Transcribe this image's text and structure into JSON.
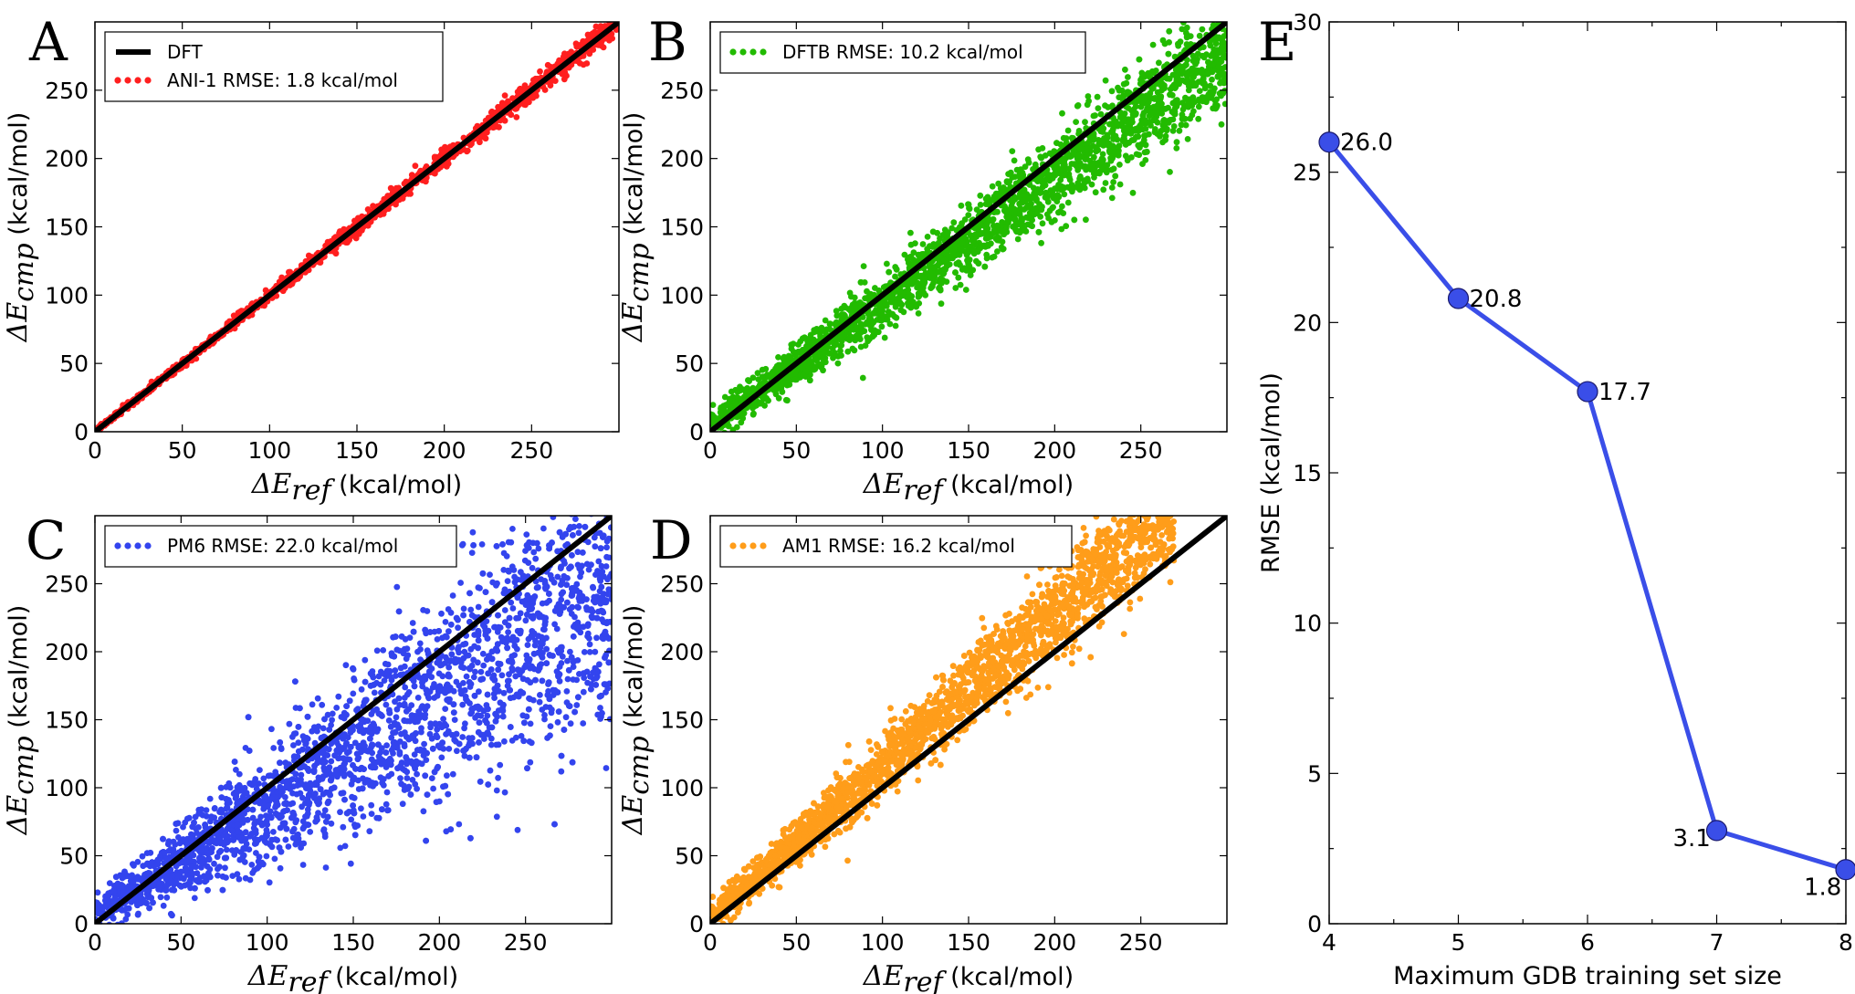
{
  "chart_data": [
    {
      "panel": "A",
      "type": "scatter",
      "xlabel_base": "ΔE",
      "xlabel_sub": "ref",
      "xlabel_unit": "(kcal/mol)",
      "ylabel_base": "ΔE",
      "ylabel_sub": "cmp",
      "ylabel_unit": "(kcal/mol)",
      "xlim": [
        0,
        300
      ],
      "ylim": [
        0,
        300
      ],
      "xticks": [
        "0",
        "50",
        "100",
        "150",
        "200",
        "250"
      ],
      "yticks": [
        "0",
        "50",
        "100",
        "150",
        "200",
        "250"
      ],
      "legend_position": "top-left",
      "series": [
        {
          "name": "DFT",
          "kind": "line",
          "color": "#000000",
          "x": [
            0,
            300
          ],
          "y": [
            0,
            300
          ]
        },
        {
          "name": "ANI-1 RMSE: 1.8 kcal/mol",
          "kind": "scatter",
          "color": "#ff1f1f",
          "rmse": 1.8,
          "spread_trend": "tight around y = x"
        }
      ]
    },
    {
      "panel": "B",
      "type": "scatter",
      "xlabel_base": "ΔE",
      "xlabel_sub": "ref",
      "xlabel_unit": "(kcal/mol)",
      "ylabel_base": "ΔE",
      "ylabel_sub": "cmp",
      "ylabel_unit": "(kcal/mol)",
      "xlim": [
        0,
        300
      ],
      "ylim": [
        0,
        300
      ],
      "xticks": [
        "0",
        "50",
        "100",
        "150",
        "200",
        "250"
      ],
      "yticks": [
        "0",
        "50",
        "100",
        "150",
        "200",
        "250"
      ],
      "legend_position": "top-left",
      "series": [
        {
          "name": "",
          "kind": "line",
          "color": "#000000",
          "x": [
            0,
            300
          ],
          "y": [
            0,
            300
          ]
        },
        {
          "name": "DFTB RMSE: 10.2 kcal/mol",
          "kind": "scatter",
          "color": "#22bb00",
          "rmse": 10.2,
          "spread_trend": "slightly below y = x at high energies"
        }
      ]
    },
    {
      "panel": "C",
      "type": "scatter",
      "xlabel_base": "ΔE",
      "xlabel_sub": "ref",
      "xlabel_unit": "(kcal/mol)",
      "ylabel_base": "ΔE",
      "ylabel_sub": "cmp",
      "ylabel_unit": "(kcal/mol)",
      "xlim": [
        0,
        300
      ],
      "ylim": [
        0,
        300
      ],
      "xticks": [
        "0",
        "50",
        "100",
        "150",
        "200",
        "250"
      ],
      "yticks": [
        "0",
        "50",
        "100",
        "150",
        "200",
        "250"
      ],
      "legend_position": "top-left",
      "series": [
        {
          "name": "",
          "kind": "line",
          "color": "#000000",
          "x": [
            0,
            300
          ],
          "y": [
            0,
            300
          ]
        },
        {
          "name": "PM6 RMSE: 22.0 kcal/mol",
          "kind": "scatter",
          "color": "#3344ee",
          "rmse": 22.0,
          "spread_trend": "below y = x, widening with energy"
        }
      ]
    },
    {
      "panel": "D",
      "type": "scatter",
      "xlabel_base": "ΔE",
      "xlabel_sub": "ref",
      "xlabel_unit": "(kcal/mol)",
      "ylabel_base": "ΔE",
      "ylabel_sub": "cmp",
      "ylabel_unit": "(kcal/mol)",
      "xlim": [
        0,
        300
      ],
      "ylim": [
        0,
        300
      ],
      "xticks": [
        "0",
        "50",
        "100",
        "150",
        "200",
        "250"
      ],
      "yticks": [
        "0",
        "50",
        "100",
        "150",
        "200",
        "250"
      ],
      "legend_position": "top-left",
      "series": [
        {
          "name": "",
          "kind": "line",
          "color": "#000000",
          "x": [
            0,
            300
          ],
          "y": [
            0,
            300
          ]
        },
        {
          "name": "AM1 RMSE: 16.2 kcal/mol",
          "kind": "scatter",
          "color": "#ff9d1a",
          "rmse": 16.2,
          "spread_trend": "above y = x"
        }
      ]
    },
    {
      "panel": "E",
      "type": "line",
      "xlabel": "Maximum GDB training set size",
      "ylabel": "RMSE (kcal/mol)",
      "xlim": [
        4,
        8
      ],
      "ylim": [
        0,
        30
      ],
      "xticks": [
        "4",
        "5",
        "6",
        "7",
        "8"
      ],
      "yticks": [
        "0",
        "5",
        "10",
        "15",
        "20",
        "25",
        "30"
      ],
      "series": [
        {
          "name": "",
          "color": "#3a4ee8",
          "x": [
            4,
            5,
            6,
            7,
            8
          ],
          "y": [
            26.0,
            20.8,
            17.7,
            3.1,
            1.8
          ],
          "labels": [
            "26.0",
            "20.8",
            "17.7",
            "3.1",
            "1.8"
          ]
        }
      ]
    }
  ]
}
